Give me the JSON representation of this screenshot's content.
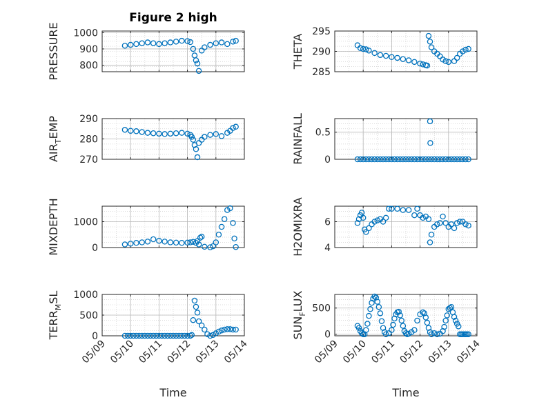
{
  "figure": {
    "title": "Figure 2 high"
  },
  "colors": {
    "marker": "#0072bd",
    "axis": "#262626",
    "grid": "#b8b8b8",
    "minor_grid": "#cfcfcf"
  },
  "chart_data": [
    {
      "type": "scatter",
      "title": "Figure 2 high",
      "ylabel": "PRESSURE",
      "xlabel": "",
      "ylim": [
        760,
        1010
      ],
      "yticks": [
        "800",
        "900",
        "1000"
      ],
      "ytick_values": [
        800,
        900,
        1000
      ],
      "xlim": [
        "05/09",
        "05/14"
      ],
      "xtick_labels_shown": false,
      "grid": true,
      "x": [
        9.8,
        10.0,
        10.2,
        10.4,
        10.6,
        10.8,
        11.0,
        11.2,
        11.4,
        11.6,
        11.8,
        12.0,
        12.1,
        12.2,
        12.25,
        12.3,
        12.35,
        12.4,
        12.5,
        12.6,
        12.8,
        13.0,
        13.2,
        13.4,
        13.6,
        13.7
      ],
      "y": [
        920,
        925,
        930,
        935,
        940,
        935,
        930,
        935,
        940,
        945,
        950,
        948,
        942,
        900,
        860,
        830,
        810,
        765,
        890,
        910,
        925,
        935,
        940,
        930,
        945,
        950
      ]
    },
    {
      "type": "scatter",
      "ylabel": "THETA",
      "xlabel": "",
      "ylim": [
        285,
        295
      ],
      "yticks": [
        "285",
        "290",
        "295"
      ],
      "ytick_values": [
        285,
        290,
        295
      ],
      "xlim": [
        "05/09",
        "05/14"
      ],
      "xtick_labels_shown": false,
      "grid": true,
      "x": [
        9.8,
        9.9,
        10.0,
        10.1,
        10.2,
        10.4,
        10.6,
        10.8,
        11.0,
        11.2,
        11.4,
        11.6,
        11.8,
        12.0,
        12.1,
        12.2,
        12.25,
        12.3,
        12.35,
        12.4,
        12.5,
        12.6,
        12.7,
        12.8,
        12.9,
        13.0,
        13.2,
        13.3,
        13.4,
        13.5,
        13.6,
        13.7
      ],
      "y": [
        291.5,
        290.8,
        290.6,
        290.5,
        290.2,
        289.6,
        289.1,
        288.9,
        288.6,
        288.4,
        288.1,
        287.8,
        287.4,
        287.0,
        286.8,
        286.6,
        286.5,
        293.8,
        292.4,
        291.0,
        290.0,
        289.4,
        288.8,
        288.0,
        287.6,
        287.4,
        287.6,
        288.4,
        289.4,
        290.0,
        290.4,
        290.6
      ]
    },
    {
      "type": "scatter",
      "ylabel": "AIR_TEMP",
      "ylabel_parts": [
        "AIR",
        "T",
        "EMP"
      ],
      "xlabel": "",
      "ylim": [
        270,
        290
      ],
      "yticks": [
        "270",
        "280",
        "290"
      ],
      "ytick_values": [
        270,
        280,
        290
      ],
      "xlim": [
        "05/09",
        "05/14"
      ],
      "xtick_labels_shown": false,
      "grid": true,
      "x": [
        9.8,
        10.0,
        10.2,
        10.4,
        10.6,
        10.8,
        11.0,
        11.2,
        11.4,
        11.6,
        11.8,
        12.0,
        12.1,
        12.15,
        12.2,
        12.25,
        12.3,
        12.35,
        12.4,
        12.5,
        12.6,
        12.8,
        13.0,
        13.2,
        13.4,
        13.5,
        13.6,
        13.7
      ],
      "y": [
        284.5,
        284.0,
        283.8,
        283.4,
        283.0,
        282.8,
        282.6,
        282.4,
        282.6,
        282.8,
        283.0,
        282.6,
        282.0,
        281.0,
        279.6,
        277.0,
        275.0,
        271.0,
        278.0,
        279.6,
        281.0,
        282.0,
        282.4,
        281.4,
        283.0,
        284.0,
        285.4,
        286.0
      ]
    },
    {
      "type": "scatter",
      "ylabel": "RAINFALL",
      "xlabel": "",
      "ylim": [
        0,
        0.75
      ],
      "yticks": [
        "0",
        "0.5"
      ],
      "ytick_values": [
        0,
        0.5
      ],
      "xlim": [
        "05/09",
        "05/14"
      ],
      "xtick_labels_shown": false,
      "grid": true,
      "x": [
        9.8,
        9.9,
        10.0,
        10.1,
        10.2,
        10.3,
        10.4,
        10.5,
        10.6,
        10.7,
        10.8,
        10.9,
        11.0,
        11.1,
        11.2,
        11.3,
        11.4,
        11.5,
        11.6,
        11.7,
        11.8,
        11.9,
        12.0,
        12.1,
        12.2,
        12.3,
        12.35,
        12.36,
        12.4,
        12.5,
        12.6,
        12.7,
        12.8,
        12.9,
        13.0,
        13.1,
        13.2,
        13.3,
        13.4,
        13.5,
        13.6,
        13.7
      ],
      "y": [
        0,
        0,
        0,
        0,
        0,
        0,
        0,
        0,
        0,
        0,
        0,
        0,
        0,
        0,
        0,
        0,
        0,
        0,
        0,
        0,
        0,
        0,
        0,
        0,
        0,
        0,
        0.7,
        0.3,
        0,
        0,
        0,
        0,
        0,
        0,
        0,
        0,
        0,
        0,
        0,
        0,
        0,
        0
      ]
    },
    {
      "type": "scatter",
      "ylabel": "MIXDEPTH",
      "xlabel": "",
      "ylim": [
        0,
        1600
      ],
      "yticks": [
        "0",
        "1000"
      ],
      "ytick_values": [
        0,
        1000
      ],
      "xlim": [
        "05/09",
        "05/14"
      ],
      "xtick_labels_shown": false,
      "grid": true,
      "x": [
        9.8,
        10.0,
        10.2,
        10.4,
        10.6,
        10.8,
        11.0,
        11.2,
        11.4,
        11.6,
        11.8,
        12.0,
        12.1,
        12.2,
        12.3,
        12.35,
        12.4,
        12.45,
        12.5,
        12.6,
        12.8,
        12.9,
        13.0,
        13.1,
        13.2,
        13.3,
        13.4,
        13.5,
        13.6,
        13.65,
        13.7
      ],
      "y": [
        120,
        150,
        180,
        200,
        230,
        320,
        260,
        230,
        200,
        190,
        180,
        190,
        200,
        220,
        180,
        250,
        120,
        380,
        420,
        30,
        10,
        50,
        200,
        500,
        800,
        1100,
        1450,
        1520,
        950,
        350,
        20
      ]
    },
    {
      "type": "scatter",
      "ylabel": "H2OMIXRA",
      "xlabel": "",
      "ylim": [
        4,
        7.2
      ],
      "yticks": [
        "4",
        "6"
      ],
      "ytick_values": [
        4,
        6
      ],
      "xlim": [
        "05/09",
        "05/14"
      ],
      "xtick_labels_shown": false,
      "grid": true,
      "x": [
        9.8,
        9.85,
        9.9,
        9.95,
        10.0,
        10.05,
        10.1,
        10.2,
        10.3,
        10.4,
        10.5,
        10.6,
        10.7,
        10.8,
        10.9,
        11.0,
        11.2,
        11.4,
        11.6,
        11.8,
        11.9,
        12.0,
        12.1,
        12.2,
        12.3,
        12.35,
        12.4,
        12.5,
        12.6,
        12.7,
        12.8,
        12.9,
        13.0,
        13.1,
        13.2,
        13.3,
        13.4,
        13.5,
        13.6,
        13.7
      ],
      "y": [
        5.9,
        6.2,
        6.5,
        6.7,
        6.3,
        5.4,
        5.2,
        5.5,
        5.8,
        6.0,
        6.1,
        6.2,
        6.0,
        6.3,
        7.0,
        7.0,
        7.0,
        6.9,
        6.9,
        6.5,
        7.0,
        6.5,
        6.3,
        6.4,
        6.2,
        4.4,
        5.0,
        5.6,
        5.8,
        5.9,
        6.4,
        5.9,
        5.6,
        5.8,
        5.5,
        5.9,
        6.0,
        6.0,
        5.8,
        5.7
      ]
    },
    {
      "type": "scatter",
      "ylabel": "TERR_MSL",
      "ylabel_parts": [
        "TERR",
        "M",
        "SL"
      ],
      "xlabel": "Time",
      "ylim": [
        0,
        1000
      ],
      "yticks": [
        "0",
        "500",
        "1000"
      ],
      "ytick_values": [
        0,
        500,
        1000
      ],
      "xlim": [
        "05/09",
        "05/14"
      ],
      "xticks": [
        "05/09",
        "05/10",
        "05/11",
        "05/12",
        "05/13",
        "05/14"
      ],
      "grid": true,
      "x": [
        9.8,
        9.9,
        10.0,
        10.1,
        10.2,
        10.3,
        10.4,
        10.5,
        10.6,
        10.7,
        10.8,
        10.9,
        11.0,
        11.1,
        11.2,
        11.3,
        11.4,
        11.5,
        11.6,
        11.7,
        11.8,
        11.9,
        12.0,
        12.1,
        12.15,
        12.2,
        12.25,
        12.3,
        12.35,
        12.4,
        12.5,
        12.6,
        12.7,
        12.8,
        12.9,
        13.0,
        13.1,
        13.2,
        13.3,
        13.4,
        13.5,
        13.6,
        13.7
      ],
      "y": [
        0,
        0,
        0,
        0,
        0,
        0,
        0,
        0,
        0,
        0,
        0,
        0,
        0,
        0,
        0,
        0,
        0,
        0,
        0,
        0,
        0,
        0,
        0,
        0,
        20,
        380,
        850,
        700,
        560,
        350,
        250,
        150,
        40,
        0,
        20,
        60,
        100,
        130,
        150,
        160,
        160,
        150,
        150
      ]
    },
    {
      "type": "scatter",
      "ylabel": "SUN_FLUX",
      "ylabel_parts": [
        "SUN",
        "F",
        "LUX"
      ],
      "xlabel": "Time",
      "ylim": [
        -30,
        760
      ],
      "yticks": [
        "0",
        "500"
      ],
      "ytick_values": [
        0,
        500
      ],
      "xlim": [
        "05/09",
        "05/14"
      ],
      "xticks": [
        "05/09",
        "05/10",
        "05/11",
        "05/12",
        "05/13",
        "05/14"
      ],
      "grid": true,
      "x": [
        9.8,
        9.85,
        9.9,
        9.95,
        10.0,
        10.05,
        10.1,
        10.15,
        10.2,
        10.25,
        10.3,
        10.35,
        10.4,
        10.45,
        10.5,
        10.55,
        10.6,
        10.65,
        10.7,
        10.75,
        10.8,
        10.9,
        11.0,
        11.05,
        11.1,
        11.15,
        11.2,
        11.25,
        11.3,
        11.35,
        11.4,
        11.45,
        11.5,
        11.55,
        11.6,
        11.7,
        11.8,
        11.9,
        12.0,
        12.1,
        12.15,
        12.2,
        12.25,
        12.3,
        12.35,
        12.4,
        12.5,
        12.6,
        12.7,
        12.8,
        12.85,
        12.9,
        12.95,
        13.0,
        13.05,
        13.1,
        13.15,
        13.2,
        13.25,
        13.3,
        13.35,
        13.4,
        13.45,
        13.5,
        13.55,
        13.6,
        13.65,
        13.7
      ],
      "y": [
        160,
        120,
        60,
        20,
        0,
        0,
        80,
        200,
        350,
        480,
        600,
        680,
        720,
        700,
        620,
        520,
        400,
        250,
        120,
        40,
        0,
        20,
        80,
        180,
        300,
        380,
        420,
        430,
        360,
        260,
        160,
        60,
        20,
        0,
        10,
        40,
        80,
        260,
        380,
        420,
        400,
        320,
        220,
        120,
        40,
        0,
        20,
        0,
        10,
        60,
        140,
        260,
        360,
        480,
        500,
        520,
        420,
        330,
        260,
        200,
        150,
        0,
        0,
        0,
        0,
        0,
        0,
        0
      ]
    }
  ]
}
